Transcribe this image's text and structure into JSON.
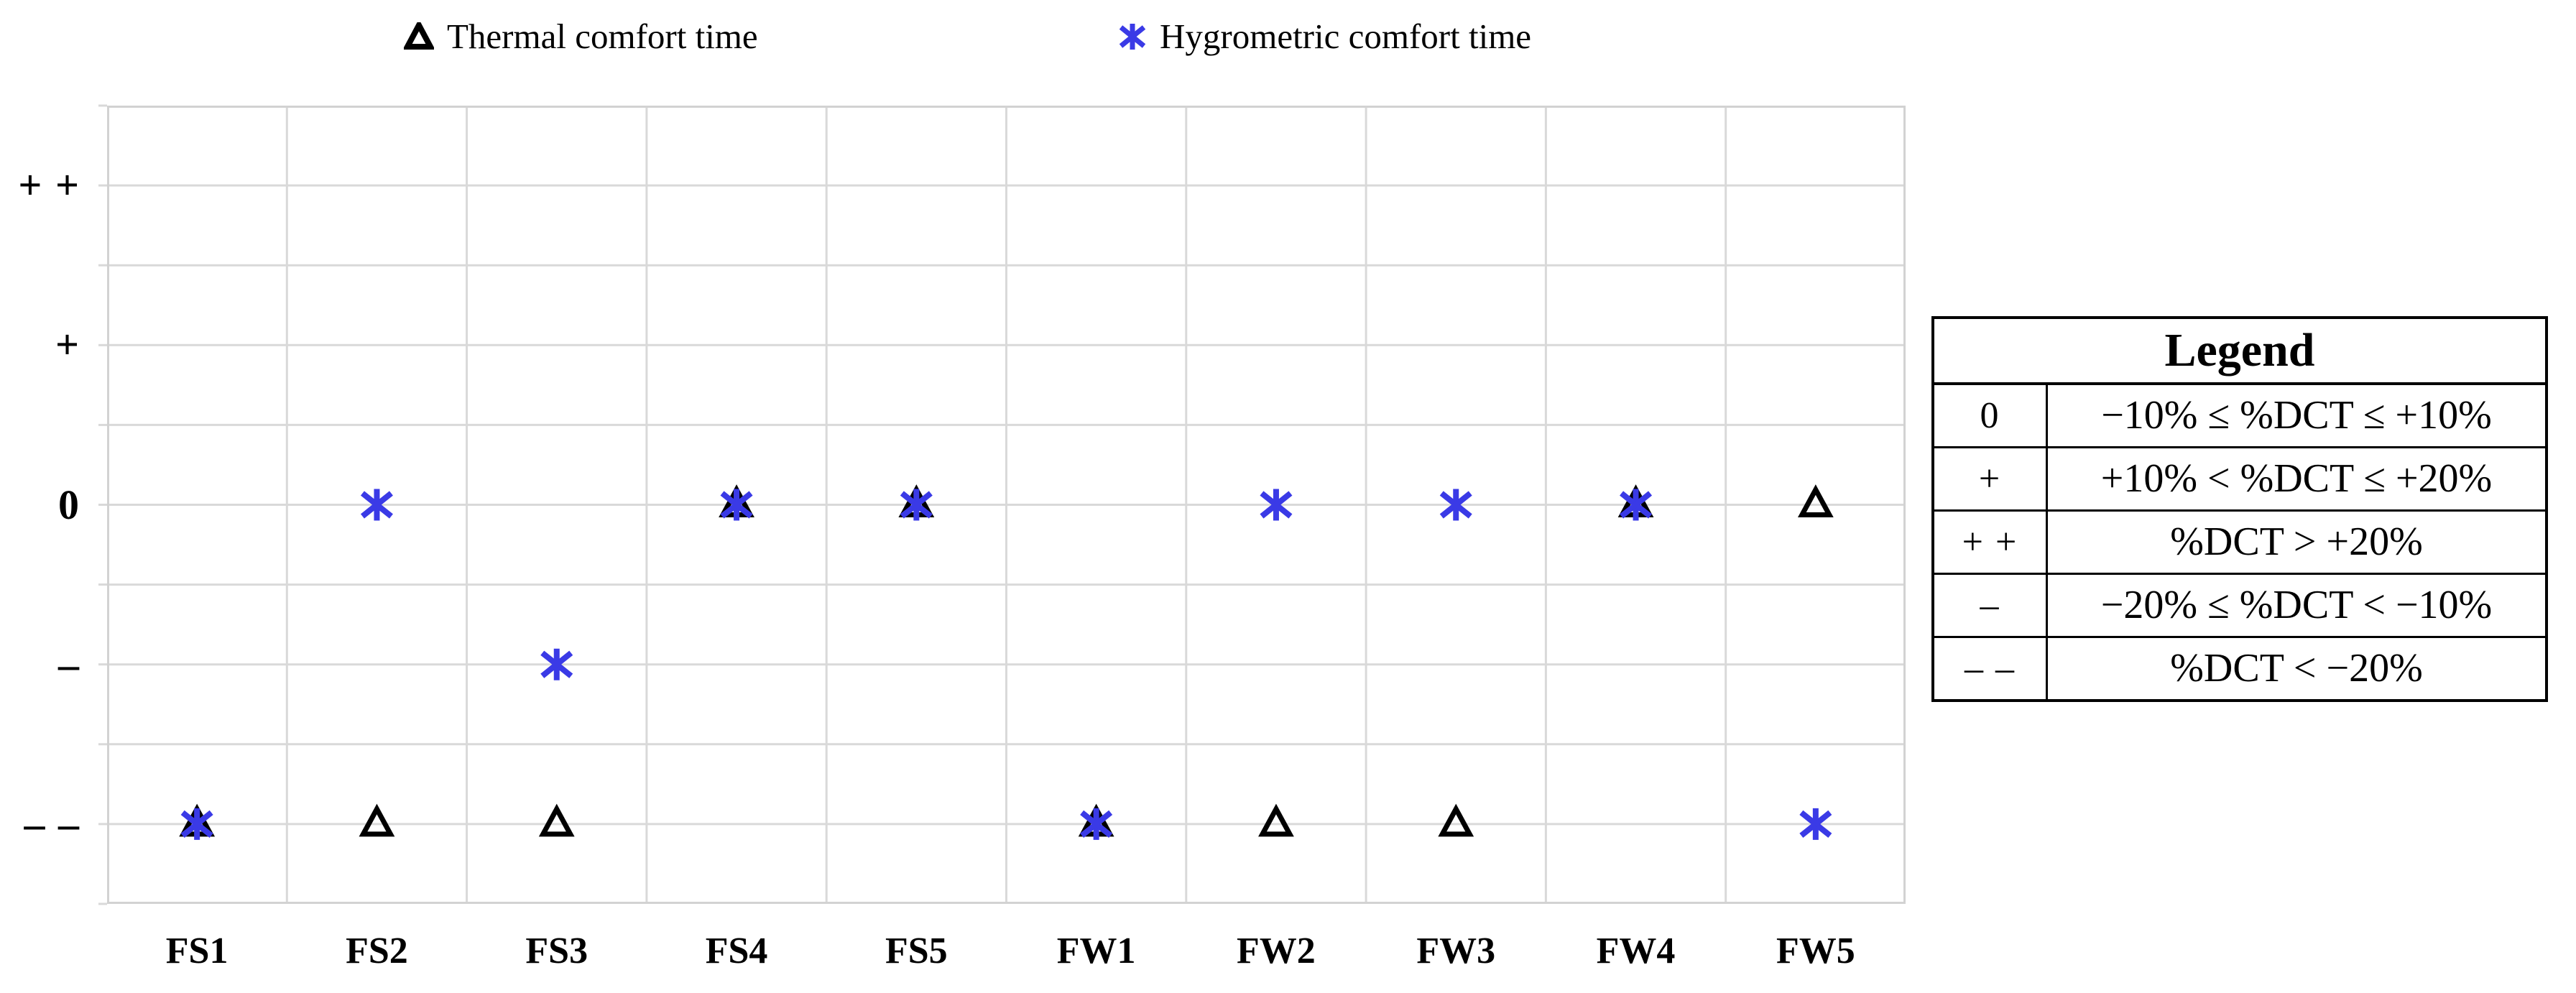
{
  "colors": {
    "marker_blue": "#3A3AE6",
    "marker_black": "#000000",
    "gridline": "#D9D9D9",
    "plot_border": "#D2D2D2",
    "table_border": "#000000"
  },
  "chart_data": {
    "type": "scatter",
    "title": "",
    "xlabel": "",
    "ylabel": "",
    "grid": "on",
    "legend_position": "top",
    "categories": [
      "FS1",
      "FS2",
      "FS3",
      "FS4",
      "FS5",
      "FW1",
      "FW2",
      "FW3",
      "FW4",
      "FW5"
    ],
    "y_axis": {
      "labels_top_to_bottom": [
        "+ +",
        "+",
        "0",
        "–",
        "– –"
      ],
      "label_rows": [
        1,
        3,
        5,
        7,
        9
      ],
      "value_rows": {
        "++": 1,
        "+": 3,
        "0": 5,
        "-": 7,
        "--": 9
      },
      "grid_rows": 10
    },
    "series": [
      {
        "name": "Thermal comfort time",
        "marker": "triangle",
        "color": "#000000",
        "values": [
          "--",
          "--",
          "--",
          "0",
          "0",
          "--",
          "--",
          "--",
          "0",
          "0"
        ]
      },
      {
        "name": "Hygrometric comfort time",
        "marker": "asterisk",
        "color": "#3A3AE6",
        "values": [
          "--",
          "0",
          "-",
          "0",
          "0",
          "--",
          "0",
          "0",
          "0",
          "--"
        ]
      }
    ]
  },
  "legend_table": {
    "title": "Legend",
    "rows": [
      {
        "symbol": "0",
        "description": "−10% ≤ %DCT ≤ +10%"
      },
      {
        "symbol": "+",
        "description": "+10% < %DCT ≤ +20%"
      },
      {
        "symbol": "+ +",
        "description": "%DCT > +20%"
      },
      {
        "symbol": "–",
        "description": "−20% ≤ %DCT < −10%"
      },
      {
        "symbol": "– –",
        "description": "%DCT < −20%"
      }
    ]
  }
}
